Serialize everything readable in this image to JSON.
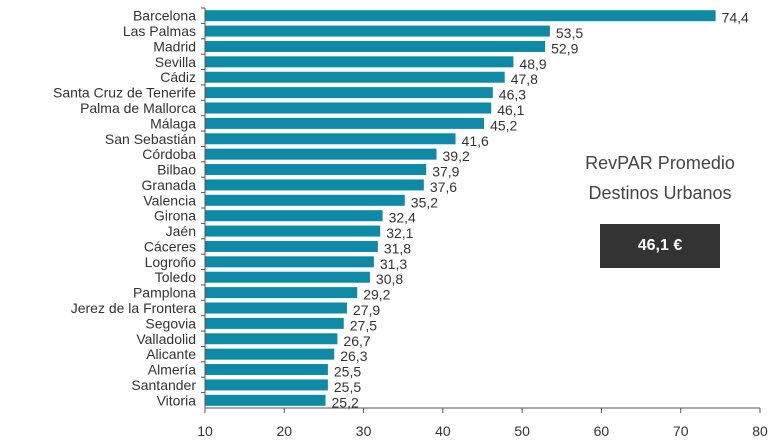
{
  "chart_data": {
    "type": "bar",
    "orientation": "horizontal",
    "categories": [
      "Barcelona",
      "Las Palmas",
      "Madrid",
      "Sevilla",
      "Cádiz",
      "Santa Cruz de Tenerife",
      "Palma de Mallorca",
      "Málaga",
      "San Sebastián",
      "Córdoba",
      "Bilbao",
      "Granada",
      "Valencia",
      "Girona",
      "Jaén",
      "Cáceres",
      "Logroño",
      "Toledo",
      "Pamplona",
      "Jerez de la Frontera",
      "Segovia",
      "Valladolid",
      "Alicante",
      "Almería",
      "Santander",
      "Vitoria"
    ],
    "values": [
      74.4,
      53.5,
      52.9,
      48.9,
      47.8,
      46.3,
      46.1,
      45.2,
      41.6,
      39.2,
      37.9,
      37.6,
      35.2,
      32.4,
      32.1,
      31.8,
      31.3,
      30.8,
      29.2,
      27.9,
      27.5,
      26.7,
      26.3,
      25.5,
      25.5,
      25.2
    ],
    "value_labels": [
      "74,4",
      "53,5",
      "52,9",
      "48,9",
      "47,8",
      "46,3",
      "46,1",
      "45,2",
      "41,6",
      "39,2",
      "37,9",
      "37,6",
      "35,2",
      "32,4",
      "32,1",
      "31,8",
      "31,3",
      "30,8",
      "29,2",
      "27,9",
      "27,5",
      "26,7",
      "26,3",
      "25,5",
      "25,5",
      "25,2"
    ],
    "xlim": [
      10,
      80
    ],
    "xticks": [
      "10",
      "20",
      "30",
      "40",
      "50",
      "60",
      "70",
      "80"
    ],
    "bar_color": "#0e8aa6",
    "title": "",
    "xlabel": "",
    "ylabel": "",
    "grid": false
  },
  "callout": {
    "line1": "RevPAR Promedio",
    "line2": "Destinos Urbanos",
    "value": "46,1 €"
  }
}
